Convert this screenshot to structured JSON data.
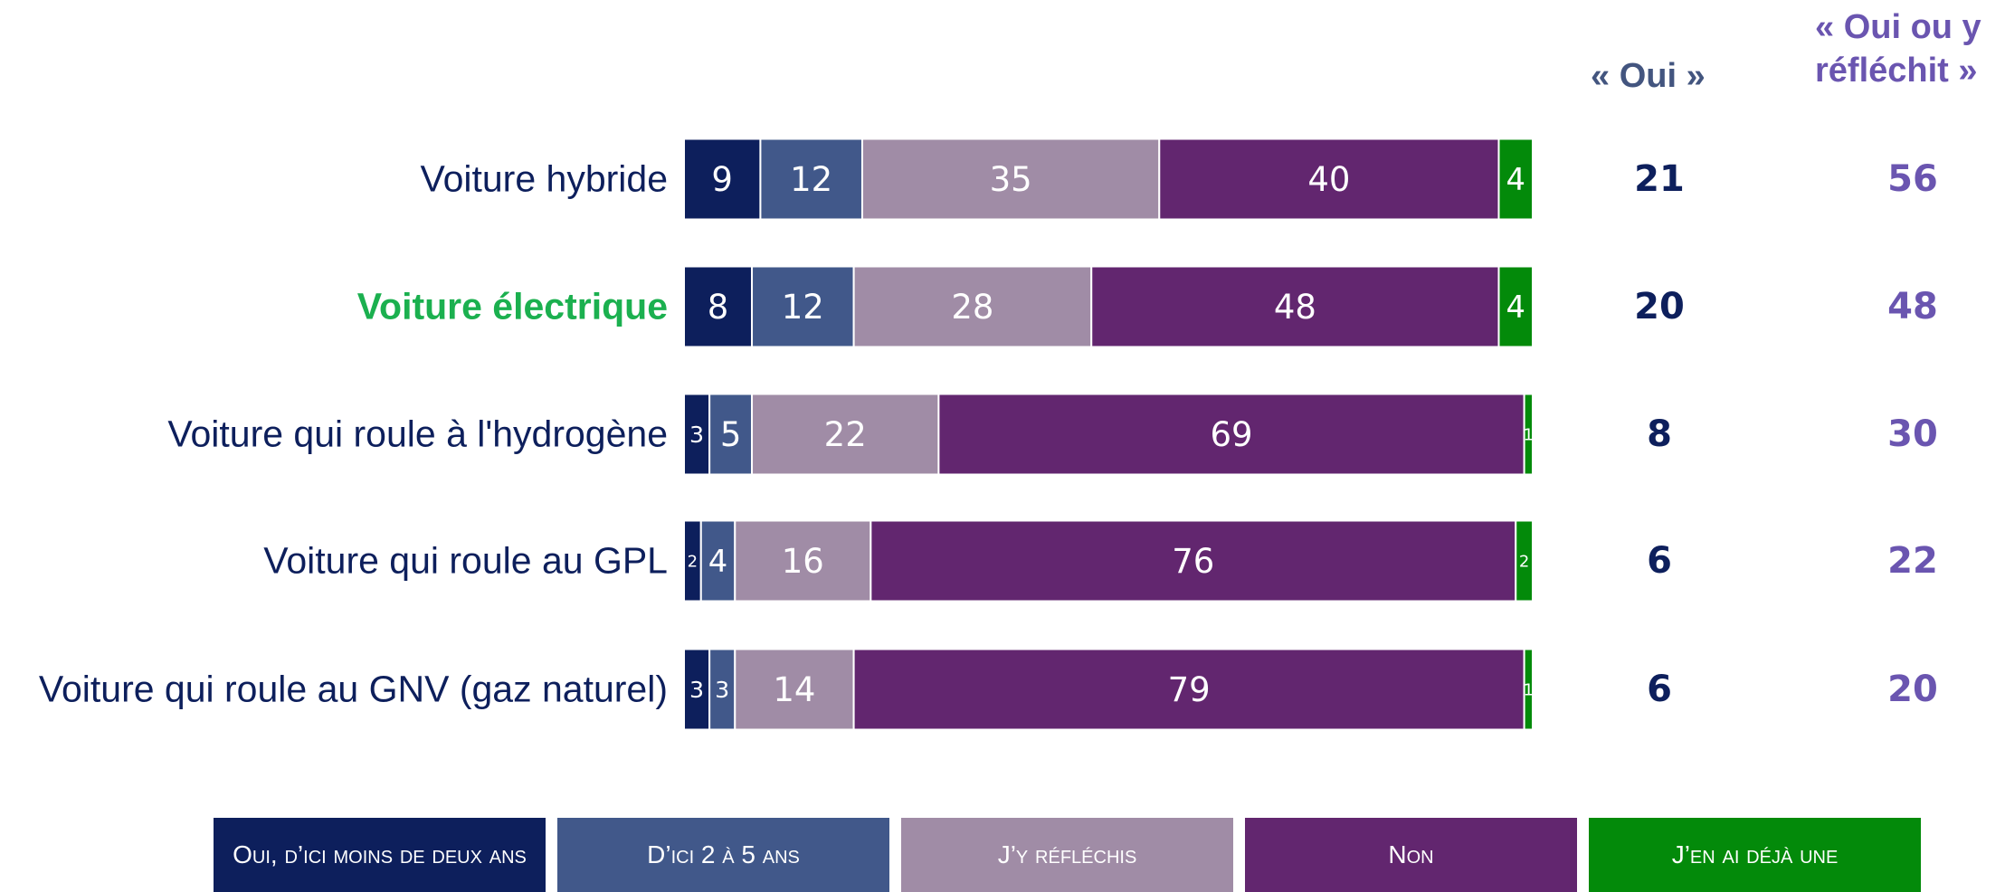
{
  "chart_data": {
    "type": "stacked_bar_horizontal",
    "categories": [
      "Voiture hybride",
      "Voiture électrique",
      "Voiture qui roule à l'hydrogène",
      "Voiture qui roule au GPL",
      "Voiture qui roule au GNV (gaz naturel)"
    ],
    "highlight": {
      "index": 1,
      "color": "#1bb04f"
    },
    "xlim": [
      0,
      100
    ],
    "series": [
      {
        "name": "Oui, d’ici moins de deux ans",
        "color": "#0d1f5c",
        "values": [
          9,
          8,
          3,
          2,
          3
        ]
      },
      {
        "name": "D’ici 2 à 5 ans",
        "color": "#41588a",
        "values": [
          12,
          12,
          5,
          4,
          3
        ]
      },
      {
        "name": "J’y réfléchis",
        "color": "#a08ca6",
        "values": [
          35,
          28,
          22,
          16,
          14
        ]
      },
      {
        "name": "Non",
        "color": "#62266f",
        "values": [
          40,
          48,
          69,
          76,
          79
        ]
      },
      {
        "name": "J’en ai déjà une",
        "color": "#038a0a",
        "values": [
          4,
          4,
          1,
          2,
          1
        ]
      }
    ],
    "columns": [
      {
        "header": "« Oui »",
        "header_color": "#43557f",
        "color": "#0d1f5c",
        "values": [
          21,
          20,
          8,
          6,
          6
        ]
      },
      {
        "header": "« Oui ou y réfléchit »",
        "header_color": "#6a55b0",
        "color": "#6a55b0",
        "values": [
          56,
          48,
          30,
          22,
          20
        ]
      }
    ]
  }
}
